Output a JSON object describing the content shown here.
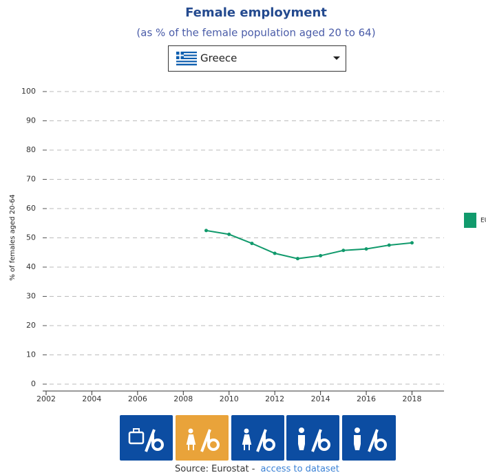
{
  "title": "Female employment",
  "subtitle": "(as % of the female population aged 20 to 64)",
  "dropdown": {
    "selected": "Greece"
  },
  "chart_data": {
    "type": "line",
    "y_label": "% of females aged 20-64",
    "x": [
      2009,
      2010,
      2011,
      2012,
      2013,
      2014,
      2015,
      2016,
      2017,
      2018
    ],
    "series": [
      {
        "name": "EU",
        "color": "#119a6c",
        "values": [
          52.5,
          51.2,
          48.1,
          44.7,
          42.9,
          43.9,
          45.7,
          46.2,
          47.5,
          48.3
        ]
      }
    ],
    "xlim": [
      2001.85,
      2019.4
    ],
    "xticks": [
      2002,
      2004,
      2006,
      2008,
      2010,
      2012,
      2014,
      2016,
      2018
    ],
    "ylim": [
      0,
      100
    ],
    "yticks": [
      0,
      10,
      20,
      30,
      40,
      50,
      60,
      70,
      80,
      90,
      100
    ],
    "grid": true,
    "legend": "right"
  },
  "source": {
    "text": "Source: Eurostat -",
    "link": "access to dataset"
  }
}
